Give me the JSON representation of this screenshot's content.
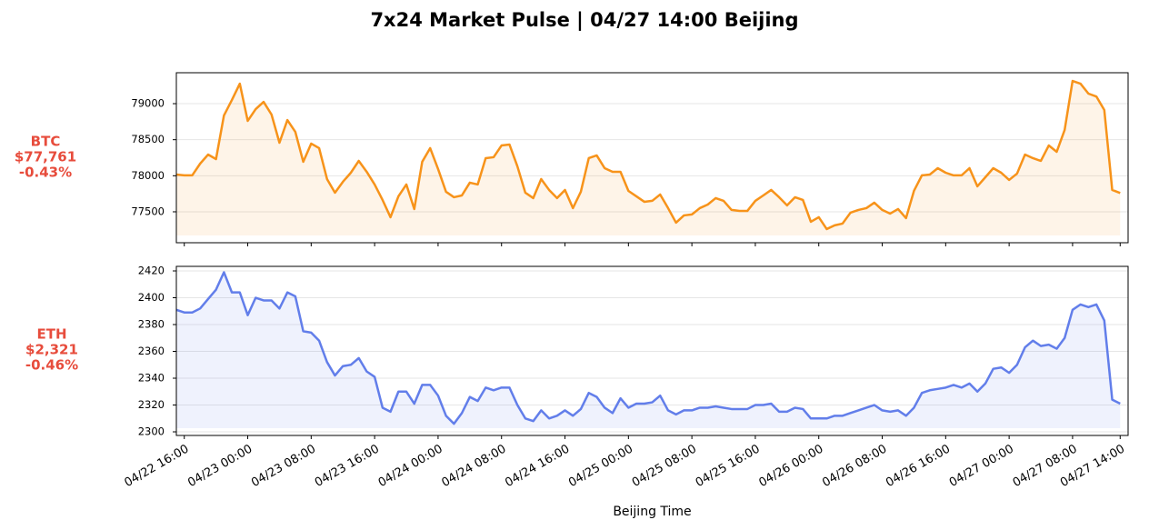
{
  "title": "7x24 Market Pulse | 04/27 14:00 Beijing",
  "chart_data": [
    {
      "type": "line",
      "annotations": [
        "BTC",
        "$77,761",
        "-0.43%"
      ],
      "color": "#f7931a",
      "fill": true,
      "grid": true,
      "x": [
        "04/22 15:00",
        "04/22 16:00",
        "04/22 17:00",
        "04/22 18:00",
        "04/22 19:00",
        "04/22 20:00",
        "04/22 21:00",
        "04/22 22:00",
        "04/22 23:00",
        "04/23 00:00",
        "04/23 01:00",
        "04/23 02:00",
        "04/23 03:00",
        "04/23 04:00",
        "04/23 05:00",
        "04/23 06:00",
        "04/23 07:00",
        "04/23 08:00",
        "04/23 09:00",
        "04/23 10:00",
        "04/23 11:00",
        "04/23 12:00",
        "04/23 13:00",
        "04/23 14:00",
        "04/23 15:00",
        "04/23 16:00",
        "04/23 17:00",
        "04/23 18:00",
        "04/23 19:00",
        "04/23 20:00",
        "04/23 21:00",
        "04/23 22:00",
        "04/23 23:00",
        "04/24 00:00",
        "04/24 01:00",
        "04/24 02:00",
        "04/24 03:00",
        "04/24 04:00",
        "04/24 05:00",
        "04/24 06:00",
        "04/24 07:00",
        "04/24 08:00",
        "04/24 09:00",
        "04/24 10:00",
        "04/24 11:00",
        "04/24 12:00",
        "04/24 13:00",
        "04/24 14:00",
        "04/24 15:00",
        "04/24 16:00",
        "04/24 17:00",
        "04/24 18:00",
        "04/24 19:00",
        "04/24 20:00",
        "04/24 21:00",
        "04/24 22:00",
        "04/24 23:00",
        "04/25 00:00",
        "04/25 01:00",
        "04/25 02:00",
        "04/25 03:00",
        "04/25 04:00",
        "04/25 05:00",
        "04/25 06:00",
        "04/25 07:00",
        "04/25 08:00",
        "04/25 09:00",
        "04/25 10:00",
        "04/25 11:00",
        "04/25 12:00",
        "04/25 13:00",
        "04/25 14:00",
        "04/25 15:00",
        "04/25 16:00",
        "04/25 17:00",
        "04/25 18:00",
        "04/25 19:00",
        "04/25 20:00",
        "04/25 21:00",
        "04/25 22:00",
        "04/25 23:00",
        "04/26 00:00",
        "04/26 01:00",
        "04/26 02:00",
        "04/26 03:00",
        "04/26 04:00",
        "04/26 05:00",
        "04/26 06:00",
        "04/26 07:00",
        "04/26 08:00",
        "04/26 09:00",
        "04/26 10:00",
        "04/26 11:00",
        "04/26 12:00",
        "04/26 13:00",
        "04/26 14:00",
        "04/26 15:00",
        "04/26 16:00",
        "04/26 17:00",
        "04/26 18:00",
        "04/26 19:00",
        "04/26 20:00",
        "04/26 21:00",
        "04/26 22:00",
        "04/26 23:00",
        "04/27 00:00",
        "04/27 01:00",
        "04/27 02:00",
        "04/27 03:00",
        "04/27 04:00",
        "04/27 05:00",
        "04/27 06:00",
        "04/27 07:00",
        "04/27 08:00",
        "04/27 09:00",
        "04/27 10:00",
        "04/27 11:00",
        "04/27 12:00",
        "04/27 13:00",
        "04/27 14:00"
      ],
      "values": [
        78017,
        78005,
        78005,
        78168,
        78294,
        78231,
        78836,
        79050,
        79277,
        78761,
        78924,
        79025,
        78849,
        78458,
        78773,
        78609,
        78194,
        78446,
        78383,
        77954,
        77765,
        77916,
        78042,
        78206,
        78055,
        77879,
        77664,
        77425,
        77715,
        77879,
        77538,
        78194,
        78383,
        78093,
        77778,
        77702,
        77727,
        77904,
        77879,
        78244,
        78257,
        78420,
        78433,
        78131,
        77765,
        77690,
        77954,
        77803,
        77690,
        77803,
        77551,
        77778,
        78244,
        78282,
        78105,
        78055,
        78055,
        77790,
        77715,
        77639,
        77652,
        77740,
        77551,
        77349,
        77450,
        77463,
        77551,
        77601,
        77690,
        77652,
        77526,
        77513,
        77513,
        77652,
        77727,
        77803,
        77702,
        77589,
        77702,
        77664,
        77362,
        77425,
        77261,
        77312,
        77337,
        77488,
        77526,
        77551,
        77627,
        77526,
        77475,
        77538,
        77412,
        77790,
        78005,
        78017,
        78105,
        78042,
        78005,
        78005,
        78105,
        77853,
        77979,
        78105,
        78042,
        77942,
        78030,
        78294,
        78244,
        78206,
        78420,
        78332,
        78635,
        79315,
        79277,
        79139,
        79099,
        78912,
        77803,
        77761
      ],
      "xlim": [
        "04/22 15:00",
        "04/27 15:00"
      ],
      "xticks": [
        "04/22 16:00",
        "04/23 00:00",
        "04/23 08:00",
        "04/23 16:00",
        "04/24 00:00",
        "04/24 08:00",
        "04/24 16:00",
        "04/25 00:00",
        "04/25 08:00",
        "04/25 16:00",
        "04/26 00:00",
        "04/26 08:00",
        "04/26 16:00",
        "04/27 00:00",
        "04/27 08:00",
        "04/27 14:00"
      ],
      "ylim": [
        77071,
        79429
      ],
      "yticks": [
        77500,
        78000,
        78500,
        79000
      ]
    },
    {
      "type": "line",
      "annotations": [
        "ETH",
        "$2,321",
        "-0.46%"
      ],
      "color": "#627eea",
      "fill": true,
      "grid": true,
      "xlabel": "Beijing Time",
      "x": [
        "04/22 15:00",
        "04/22 16:00",
        "04/22 17:00",
        "04/22 18:00",
        "04/22 19:00",
        "04/22 20:00",
        "04/22 21:00",
        "04/22 22:00",
        "04/22 23:00",
        "04/23 00:00",
        "04/23 01:00",
        "04/23 02:00",
        "04/23 03:00",
        "04/23 04:00",
        "04/23 05:00",
        "04/23 06:00",
        "04/23 07:00",
        "04/23 08:00",
        "04/23 09:00",
        "04/23 10:00",
        "04/23 11:00",
        "04/23 12:00",
        "04/23 13:00",
        "04/23 14:00",
        "04/23 15:00",
        "04/23 16:00",
        "04/23 17:00",
        "04/23 18:00",
        "04/23 19:00",
        "04/23 20:00",
        "04/23 21:00",
        "04/23 22:00",
        "04/23 23:00",
        "04/24 00:00",
        "04/24 01:00",
        "04/24 02:00",
        "04/24 03:00",
        "04/24 04:00",
        "04/24 05:00",
        "04/24 06:00",
        "04/24 07:00",
        "04/24 08:00",
        "04/24 09:00",
        "04/24 10:00",
        "04/24 11:00",
        "04/24 12:00",
        "04/24 13:00",
        "04/24 14:00",
        "04/24 15:00",
        "04/24 16:00",
        "04/24 17:00",
        "04/24 18:00",
        "04/24 19:00",
        "04/24 20:00",
        "04/24 21:00",
        "04/24 22:00",
        "04/24 23:00",
        "04/25 00:00",
        "04/25 01:00",
        "04/25 02:00",
        "04/25 03:00",
        "04/25 04:00",
        "04/25 05:00",
        "04/25 06:00",
        "04/25 07:00",
        "04/25 08:00",
        "04/25 09:00",
        "04/25 10:00",
        "04/25 11:00",
        "04/25 12:00",
        "04/25 13:00",
        "04/25 14:00",
        "04/25 15:00",
        "04/25 16:00",
        "04/25 17:00",
        "04/25 18:00",
        "04/25 19:00",
        "04/25 20:00",
        "04/25 21:00",
        "04/25 22:00",
        "04/25 23:00",
        "04/26 00:00",
        "04/26 01:00",
        "04/26 02:00",
        "04/26 03:00",
        "04/26 04:00",
        "04/26 05:00",
        "04/26 06:00",
        "04/26 07:00",
        "04/26 08:00",
        "04/26 09:00",
        "04/26 10:00",
        "04/26 11:00",
        "04/26 12:00",
        "04/26 13:00",
        "04/26 14:00",
        "04/26 15:00",
        "04/26 16:00",
        "04/26 17:00",
        "04/26 18:00",
        "04/26 19:00",
        "04/26 20:00",
        "04/26 21:00",
        "04/26 22:00",
        "04/26 23:00",
        "04/27 00:00",
        "04/27 01:00",
        "04/27 02:00",
        "04/27 03:00",
        "04/27 04:00",
        "04/27 05:00",
        "04/27 06:00",
        "04/27 07:00",
        "04/27 08:00",
        "04/27 09:00",
        "04/27 10:00",
        "04/27 11:00",
        "04/27 12:00",
        "04/27 13:00",
        "04/27 14:00"
      ],
      "values": [
        2391,
        2389,
        2389,
        2392,
        2399,
        2406,
        2419,
        2404,
        2404,
        2387,
        2400,
        2398,
        2398,
        2392,
        2404,
        2401,
        2375,
        2374,
        2368,
        2352,
        2342,
        2349,
        2350,
        2355,
        2345,
        2341,
        2318,
        2315,
        2330,
        2330,
        2321,
        2335,
        2335,
        2327,
        2312,
        2306,
        2314,
        2326,
        2323,
        2333,
        2331,
        2333,
        2333,
        2320,
        2310,
        2308,
        2316,
        2310,
        2312,
        2316,
        2312,
        2317,
        2329,
        2326,
        2318,
        2314,
        2325,
        2318,
        2321,
        2321,
        2322,
        2327,
        2316,
        2313,
        2316,
        2316,
        2318,
        2318,
        2319,
        2318,
        2317,
        2317,
        2317,
        2320,
        2320,
        2321,
        2315,
        2315,
        2318,
        2317,
        2310,
        2310,
        2310,
        2312,
        2312,
        2314,
        2316,
        2318,
        2320,
        2316,
        2315,
        2316,
        2312,
        2318,
        2329,
        2331,
        2332,
        2333,
        2335,
        2333,
        2336,
        2330,
        2336,
        2347,
        2348,
        2344,
        2350,
        2363,
        2368,
        2364,
        2365,
        2362,
        2370,
        2391,
        2395,
        2393,
        2395,
        2383,
        2324,
        2321
      ],
      "xlim": [
        "04/22 15:00",
        "04/27 15:00"
      ],
      "xticks": [
        "04/22 16:00",
        "04/23 00:00",
        "04/23 08:00",
        "04/23 16:00",
        "04/24 00:00",
        "04/24 08:00",
        "04/24 16:00",
        "04/25 00:00",
        "04/25 08:00",
        "04/25 16:00",
        "04/26 00:00",
        "04/26 08:00",
        "04/26 16:00",
        "04/27 00:00",
        "04/27 08:00",
        "04/27 14:00"
      ],
      "ylim": [
        2297.3,
        2423.4
      ],
      "yticks": [
        2300,
        2320,
        2340,
        2360,
        2380,
        2400,
        2420
      ]
    }
  ]
}
